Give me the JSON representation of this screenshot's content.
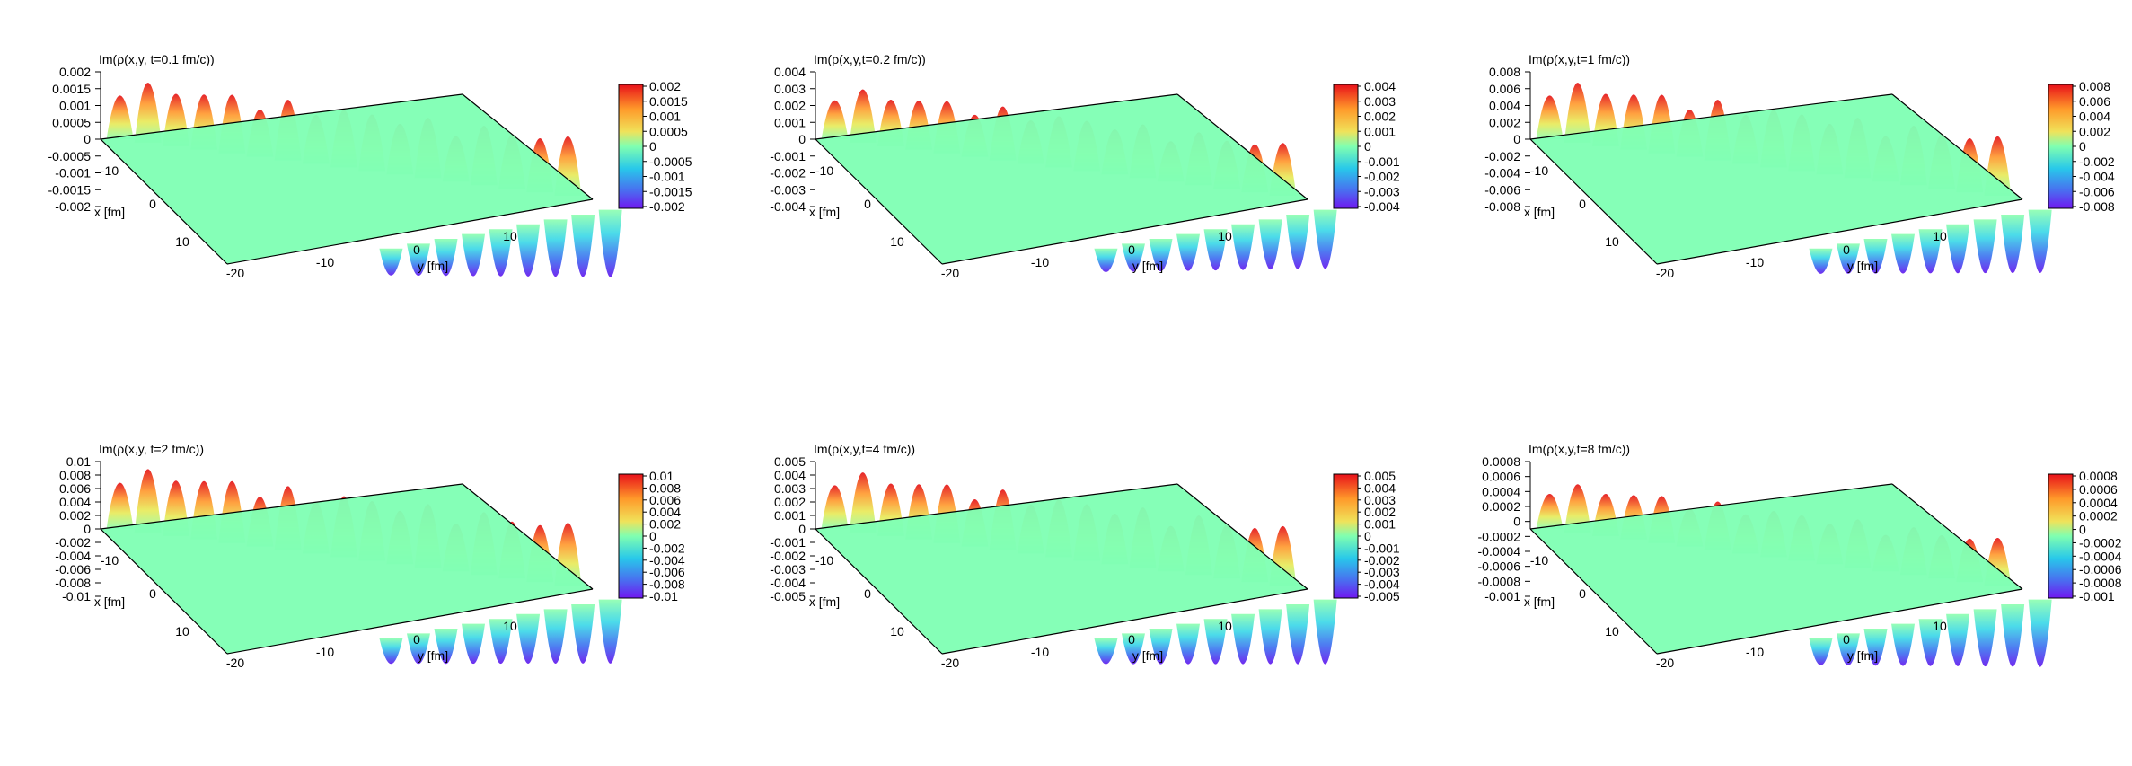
{
  "figure": {
    "xlabel": "x [fm]",
    "ylabel": "y [fm]",
    "x_ticks": [
      "-10",
      "0",
      "10",
      "-20"
    ],
    "y_ticks": [
      "-10",
      "0",
      "10"
    ]
  },
  "chart_data": [
    {
      "type": "surface",
      "title": "Im(ρ(x,y, t=0.1 fm/c))",
      "z_ticks": [
        "0.002",
        "0.0015",
        "0.001",
        "0.0005",
        "0",
        "-0.0005",
        "-0.001",
        "-0.0015",
        "-0.002"
      ],
      "cb_ticks": [
        "0.002",
        "0.0015",
        "0.001",
        "0.0005",
        "0",
        "-0.0005",
        "-0.001",
        "-0.0015",
        "-0.002"
      ],
      "zlim": [
        -0.002,
        0.002
      ],
      "peak": 0.0018,
      "trough": -0.002,
      "xlim": [
        -20,
        20
      ],
      "ylim": [
        -20,
        20
      ]
    },
    {
      "type": "surface",
      "title": "Im(ρ(x,y,t=0.2 fm/c))",
      "z_ticks": [
        "0.004",
        "0.003",
        "0.002",
        "0.001",
        "0",
        "-0.001",
        "-0.002",
        "-0.003",
        "-0.004"
      ],
      "cb_ticks": [
        "0.004",
        "0.003",
        "0.002",
        "0.001",
        "0",
        "-0.001",
        "-0.002",
        "-0.003",
        "-0.004"
      ],
      "zlim": [
        -0.004,
        0.004
      ],
      "peak": 0.0032,
      "trough": -0.0035,
      "xlim": [
        -20,
        20
      ],
      "ylim": [
        -20,
        20
      ]
    },
    {
      "type": "surface",
      "title": "Im(ρ(x,y,t=1 fm/c))",
      "z_ticks": [
        "0.008",
        "0.006",
        "0.004",
        "0.002",
        "0",
        "-0.002",
        "-0.004",
        "-0.006",
        "-0.008"
      ],
      "cb_ticks": [
        "0.008",
        "0.006",
        "0.004",
        "0.002",
        "0",
        "-0.002",
        "-0.004",
        "-0.006",
        "-0.008"
      ],
      "zlim": [
        -0.008,
        0.008
      ],
      "peak": 0.0072,
      "trough": -0.0075,
      "xlim": [
        -20,
        20
      ],
      "ylim": [
        -20,
        20
      ]
    },
    {
      "type": "surface",
      "title": "Im(ρ(x,y, t=2 fm/c))",
      "z_ticks": [
        "0.01",
        "0.008",
        "0.006",
        "0.004",
        "0.002",
        "0",
        "-0.002",
        "-0.004",
        "-0.006",
        "-0.008",
        "-0.01"
      ],
      "cb_ticks": [
        "0.01",
        "0.008",
        "0.006",
        "0.004",
        "0.002",
        "0",
        "-0.002",
        "-0.004",
        "-0.006",
        "-0.008",
        "-0.01"
      ],
      "zlim": [
        -0.01,
        0.01
      ],
      "peak": 0.0095,
      "trough": -0.0095,
      "xlim": [
        -20,
        20
      ],
      "ylim": [
        -20,
        20
      ]
    },
    {
      "type": "surface",
      "title": "Im(ρ(x,y,t=4 fm/c))",
      "z_ticks": [
        "0.005",
        "0.004",
        "0.003",
        "0.002",
        "0.001",
        "0",
        "-0.001",
        "-0.002",
        "-0.003",
        "-0.004",
        "-0.005"
      ],
      "cb_ticks": [
        "0.005",
        "0.004",
        "0.003",
        "0.002",
        "0.001",
        "0",
        "-0.001",
        "-0.002",
        "-0.003",
        "-0.004",
        "-0.005"
      ],
      "zlim": [
        -0.005,
        0.005
      ],
      "peak": 0.0045,
      "trough": -0.0048,
      "xlim": [
        -20,
        20
      ],
      "ylim": [
        -20,
        20
      ]
    },
    {
      "type": "surface",
      "title": "Im(ρ(x,y,t=8 fm/c))",
      "z_ticks": [
        "0.0008",
        "0.0006",
        "0.0004",
        "0.0002",
        "0",
        "-0.0002",
        "-0.0004",
        "-0.0006",
        "-0.0008",
        "-0.001"
      ],
      "cb_ticks": [
        "0.0008",
        "0.0006",
        "0.0004",
        "0.0002",
        "0",
        "-0.0002",
        "-0.0004",
        "-0.0006",
        "-0.0008",
        "-0.001"
      ],
      "zlim": [
        -0.001,
        0.0008
      ],
      "peak": 0.00065,
      "trough": -0.0009,
      "xlim": [
        -20,
        20
      ],
      "ylim": [
        -20,
        20
      ]
    }
  ]
}
